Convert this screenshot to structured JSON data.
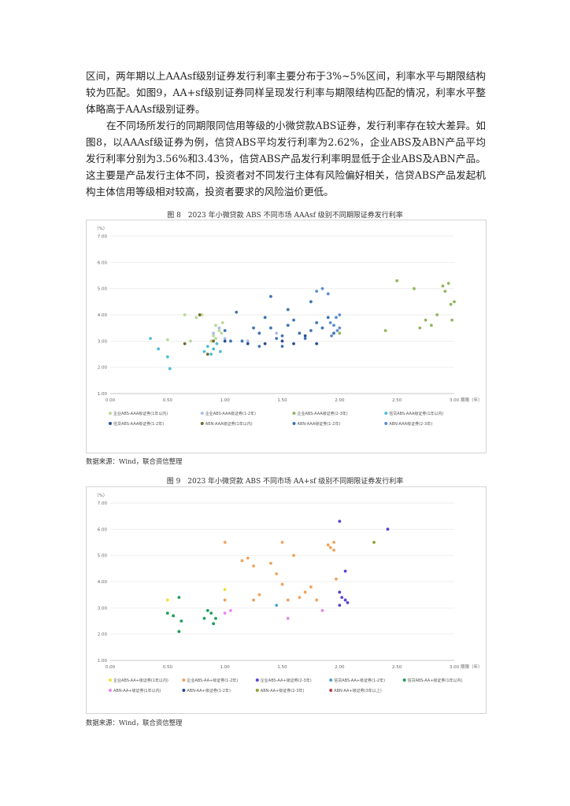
{
  "body": {
    "para1": "区间，两年期以上AAAsf级别证券发行利率主要分布于3%~5%区间，利率水平与期限结构较为匹配。如图9，AA+sf级别证券同样呈现发行利率与期限结构匹配的情况，利率水平整体略高于AAAsf级别证券。",
    "para2": "在不同场所发行的同期限同信用等级的小微贷款ABS证券，发行利率存在较大差异。如图8，以AAAsf级证券为例，信贷ABS平均发行利率为2.62%，企业ABS及ABN产品平均发行利率分别为3.56%和3.43%，信贷ABS产品发行利率明显低于企业ABS及ABN产品。这主要是产品发行主体不同，投资者对不同发行主体有风险偏好相关，信贷ABS产品发起机构主体信用等级相对较高，投资者要求的风险溢价更低。"
  },
  "figure8": {
    "caption": "图 8　2023 年小微贷款 ABS 不同市场 AAAsf 级别不同期限证券发行利率",
    "source": "数据来源：Wind，联合资信整理"
  },
  "figure9": {
    "caption": "图 9　2023 年小微贷款 ABS 不同市场 AA+sf 级别不同期限证券发行利率",
    "source": "数据来源：Wind，联合资信整理"
  },
  "chart_data": [
    {
      "type": "scatter",
      "ylabel": "（%）",
      "xlabel": "期限（年）",
      "xlim": [
        0,
        3
      ],
      "ylim": [
        1,
        7
      ],
      "x_ticks": [
        "0.00",
        "0.50",
        "1.00",
        "1.50",
        "2.00",
        "2.50",
        "3.00"
      ],
      "y_ticks": [
        "1.00",
        "2.00",
        "3.00",
        "4.00",
        "5.00",
        "6.00",
        "7.00"
      ],
      "grid": "horizontal",
      "legend": "bottom",
      "series": [
        {
          "name": "企业ABS-AAA级证券(1年以内)",
          "color": "#bcd89a",
          "points": [
            [
              0.5,
              3.05
            ],
            [
              0.65,
              4.0
            ],
            [
              0.7,
              3.0
            ],
            [
              0.75,
              3.9
            ],
            [
              0.8,
              4.0
            ],
            [
              0.88,
              3.0
            ],
            [
              0.9,
              3.2
            ],
            [
              0.92,
              3.6
            ],
            [
              0.95,
              3.4
            ],
            [
              0.97,
              3.3
            ],
            [
              0.98,
              3.7
            ],
            [
              0.92,
              3.1
            ]
          ]
        },
        {
          "name": "企业ABS-AAA级证券(1-2年)",
          "color": "#a9bfe6",
          "points": [
            [
              0.9,
              3.3
            ],
            [
              0.95,
              3.5
            ],
            [
              1.0,
              3.1
            ],
            [
              1.2,
              3.0
            ],
            [
              1.45,
              3.3
            ]
          ]
        },
        {
          "name": "企业ABS-AAA级证券(2-3年)",
          "color": "#8fb859",
          "points": [
            [
              2.0,
              3.3
            ],
            [
              2.4,
              3.4
            ],
            [
              2.5,
              5.3
            ],
            [
              2.65,
              5.0
            ],
            [
              2.7,
              3.5
            ],
            [
              2.75,
              3.8
            ],
            [
              2.8,
              3.6
            ],
            [
              2.85,
              4.0
            ],
            [
              2.9,
              5.1
            ],
            [
              2.95,
              5.2
            ],
            [
              2.97,
              4.4
            ],
            [
              3.0,
              4.5
            ],
            [
              2.98,
              3.8
            ],
            [
              2.92,
              4.9
            ]
          ]
        },
        {
          "name": "信贷ABS-AAA级证券(1年以内)",
          "color": "#4dbfd6",
          "points": [
            [
              0.35,
              3.1
            ],
            [
              0.42,
              2.7
            ],
            [
              0.5,
              2.4
            ],
            [
              0.52,
              1.95
            ],
            [
              0.82,
              2.6
            ],
            [
              0.85,
              2.8
            ],
            [
              0.88,
              2.5
            ],
            [
              0.9,
              2.7
            ],
            [
              0.93,
              2.9
            ],
            [
              0.96,
              2.6
            ]
          ]
        },
        {
          "name": "信贷ABS-AAA级证券(1-2年)",
          "color": "#2e4f8e",
          "points": [
            [
              1.0,
              3.0
            ],
            [
              1.2,
              2.9
            ],
            [
              1.35,
              2.9
            ],
            [
              1.5,
              3.0
            ],
            [
              1.6,
              2.9
            ],
            [
              1.8,
              2.9
            ],
            [
              1.7,
              3.2
            ]
          ]
        },
        {
          "name": "ABN-AAA级证券(1年以内)",
          "color": "#6f6a2e",
          "points": [
            [
              0.65,
              2.9
            ],
            [
              0.78,
              4.0
            ],
            [
              0.85,
              2.5
            ],
            [
              0.9,
              3.0
            ]
          ]
        },
        {
          "name": "ABN-AAA级证券(1-2年)",
          "color": "#3d74b4",
          "points": [
            [
              1.0,
              3.4
            ],
            [
              1.05,
              3.0
            ],
            [
              1.1,
              4.1
            ],
            [
              1.15,
              3.0
            ],
            [
              1.25,
              3.5
            ],
            [
              1.3,
              3.3
            ],
            [
              1.35,
              3.9
            ],
            [
              1.4,
              3.5
            ],
            [
              1.45,
              3.1
            ],
            [
              1.5,
              3.2
            ],
            [
              1.55,
              3.6
            ],
            [
              1.6,
              3.8
            ],
            [
              1.65,
              3.3
            ],
            [
              1.7,
              3.1
            ],
            [
              1.75,
              3.4
            ],
            [
              1.8,
              3.7
            ],
            [
              1.85,
              3.5
            ],
            [
              1.9,
              3.9
            ],
            [
              1.95,
              3.3
            ],
            [
              1.4,
              4.7
            ],
            [
              1.55,
              4.2
            ],
            [
              1.3,
              2.8
            ],
            [
              1.5,
              2.8
            ],
            [
              1.75,
              4.5
            ]
          ]
        },
        {
          "name": "ABN-AAA级证券(2-3年)",
          "color": "#5b8fd1",
          "points": [
            [
              1.8,
              4.9
            ],
            [
              1.85,
              5.0
            ],
            [
              1.9,
              4.8
            ],
            [
              1.92,
              3.7
            ],
            [
              1.95,
              3.6
            ],
            [
              1.97,
              3.9
            ],
            [
              2.0,
              3.5
            ],
            [
              1.98,
              3.4
            ],
            [
              2.0,
              4.0
            ],
            [
              1.93,
              3.2
            ]
          ]
        }
      ]
    },
    {
      "type": "scatter",
      "ylabel": "（%）",
      "xlabel": "期限（年）",
      "xlim": [
        0,
        3
      ],
      "ylim": [
        1,
        7
      ],
      "x_ticks": [
        "0.00",
        "0.50",
        "1.00",
        "1.50",
        "2.00",
        "2.50",
        "3.00"
      ],
      "y_ticks": [
        "1.00",
        "2.00",
        "3.00",
        "4.00",
        "5.00",
        "6.00",
        "7.00"
      ],
      "grid": "horizontal",
      "legend": "bottom",
      "series": [
        {
          "name": "企业ABS-AA+级证券(1年以内)",
          "color": "#f2e13c",
          "points": [
            [
              0.5,
              3.3
            ],
            [
              1.0,
              3.7
            ]
          ]
        },
        {
          "name": "企业ABS-AA+级证券(1-2年)",
          "color": "#f0a25c",
          "points": [
            [
              1.0,
              5.5
            ],
            [
              1.0,
              3.3
            ],
            [
              1.15,
              4.8
            ],
            [
              1.2,
              4.9
            ],
            [
              1.25,
              4.6
            ],
            [
              1.25,
              3.3
            ],
            [
              1.3,
              3.5
            ],
            [
              1.4,
              4.7
            ],
            [
              1.45,
              4.3
            ],
            [
              1.5,
              5.5
            ],
            [
              1.5,
              3.9
            ],
            [
              1.55,
              3.3
            ],
            [
              1.6,
              5.0
            ],
            [
              1.65,
              3.4
            ],
            [
              1.7,
              3.6
            ],
            [
              1.75,
              3.8
            ],
            [
              1.8,
              3.3
            ],
            [
              1.9,
              5.4
            ],
            [
              1.95,
              5.2
            ],
            [
              1.97,
              4.1
            ],
            [
              1.92,
              5.3
            ],
            [
              1.95,
              5.5
            ]
          ]
        },
        {
          "name": "企业ABS-AA+级证券(2-3年)",
          "color": "#5a42d4",
          "points": [
            [
              2.0,
              6.3
            ],
            [
              2.0,
              3.6
            ],
            [
              2.02,
              3.4
            ],
            [
              2.05,
              3.3
            ],
            [
              2.07,
              3.2
            ],
            [
              2.0,
              3.1
            ],
            [
              2.05,
              4.4
            ],
            [
              2.42,
              6.0
            ]
          ]
        },
        {
          "name": "信贷ABS-AA+级证券(1-2年)",
          "color": "#4aa3c9",
          "points": [
            [
              1.45,
              3.1
            ]
          ]
        },
        {
          "name": "信贷ABS-AA+级证券(1年以内)",
          "color": "#1e9e5a",
          "points": [
            [
              0.5,
              2.8
            ],
            [
              0.55,
              2.7
            ],
            [
              0.6,
              3.4
            ],
            [
              0.62,
              2.5
            ],
            [
              0.6,
              2.1
            ],
            [
              0.82,
              2.6
            ],
            [
              0.85,
              2.9
            ],
            [
              0.88,
              2.8
            ],
            [
              0.9,
              2.4
            ],
            [
              0.92,
              2.6
            ]
          ]
        },
        {
          "name": "ABN-AA+级证券(1年以内)",
          "color": "#e885e8",
          "points": [
            [
              1.0,
              2.8
            ],
            [
              1.05,
              2.9
            ],
            [
              1.55,
              2.6
            ],
            [
              1.85,
              2.9
            ]
          ]
        },
        {
          "name": "ABN-AA+级证券(1-2年)",
          "color": "#2d4e8f",
          "points": []
        },
        {
          "name": "ABN-AA+级证券(2-3年)",
          "color": "#8fa230",
          "points": [
            [
              2.3,
              5.5
            ]
          ]
        },
        {
          "name": "ABN-AA+级证券(3年以上)",
          "color": "#b5404a",
          "points": []
        }
      ]
    }
  ]
}
